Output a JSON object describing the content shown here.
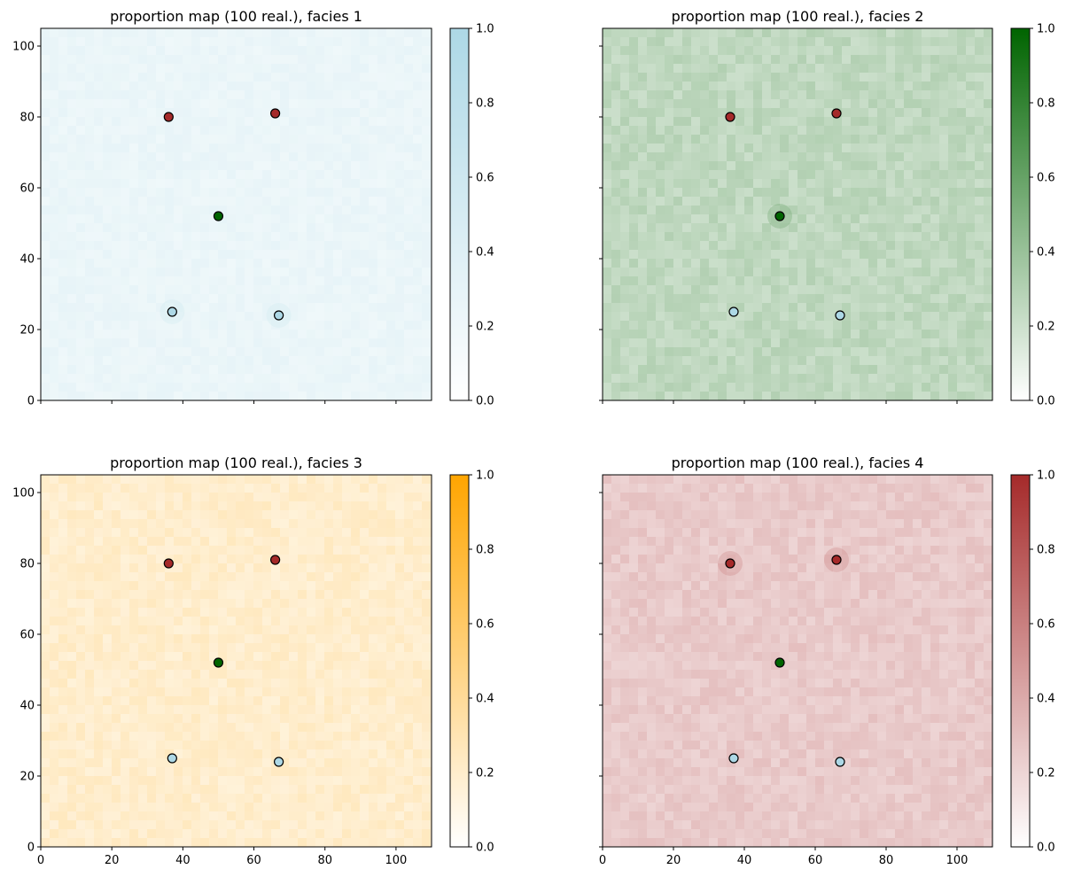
{
  "chart_data": [
    {
      "type": "heatmap",
      "title": "proportion map (100 real.), facies 1",
      "xlim": [
        0,
        110
      ],
      "ylim": [
        0,
        105
      ],
      "xticks": [
        0,
        20,
        40,
        60,
        80,
        100
      ],
      "yticks": [
        0,
        20,
        40,
        60,
        80,
        100
      ],
      "show_xticklabels": false,
      "show_yticklabels": true,
      "colorbar": {
        "ticks": [
          "0.0",
          "0.2",
          "0.4",
          "0.6",
          "0.8",
          "1.0"
        ],
        "range": [
          0,
          1
        ],
        "min_color": "#ffffff",
        "max_color": "#add8e6"
      },
      "mean_proportion": 0.25,
      "points": [
        {
          "x": 36,
          "y": 80,
          "color": "#a52a2a"
        },
        {
          "x": 66,
          "y": 81,
          "color": "#a52a2a"
        },
        {
          "x": 50,
          "y": 52,
          "color": "#006400"
        },
        {
          "x": 37,
          "y": 25,
          "color": "#add8e6"
        },
        {
          "x": 67,
          "y": 24,
          "color": "#add8e6"
        }
      ]
    },
    {
      "type": "heatmap",
      "title": "proportion map (100 real.), facies 2",
      "xlim": [
        0,
        110
      ],
      "ylim": [
        0,
        105
      ],
      "xticks": [
        0,
        20,
        40,
        60,
        80,
        100
      ],
      "yticks": [
        0,
        20,
        40,
        60,
        80,
        100
      ],
      "show_xticklabels": false,
      "show_yticklabels": false,
      "colorbar": {
        "ticks": [
          "0.0",
          "0.2",
          "0.4",
          "0.6",
          "0.8",
          "1.0"
        ],
        "range": [
          0,
          1
        ],
        "min_color": "#ffffff",
        "max_color": "#006400"
      },
      "mean_proportion": 0.25,
      "points": [
        {
          "x": 36,
          "y": 80,
          "color": "#a52a2a"
        },
        {
          "x": 66,
          "y": 81,
          "color": "#a52a2a"
        },
        {
          "x": 50,
          "y": 52,
          "color": "#006400"
        },
        {
          "x": 37,
          "y": 25,
          "color": "#add8e6"
        },
        {
          "x": 67,
          "y": 24,
          "color": "#add8e6"
        }
      ]
    },
    {
      "type": "heatmap",
      "title": "proportion map (100 real.), facies 3",
      "xlim": [
        0,
        110
      ],
      "ylim": [
        0,
        105
      ],
      "xticks": [
        0,
        20,
        40,
        60,
        80,
        100
      ],
      "yticks": [
        0,
        20,
        40,
        60,
        80,
        100
      ],
      "show_xticklabels": true,
      "show_yticklabels": true,
      "colorbar": {
        "ticks": [
          "0.0",
          "0.2",
          "0.4",
          "0.6",
          "0.8",
          "1.0"
        ],
        "range": [
          0,
          1
        ],
        "min_color": "#ffffff",
        "max_color": "#ffa500"
      },
      "mean_proportion": 0.2,
      "points": [
        {
          "x": 36,
          "y": 80,
          "color": "#a52a2a"
        },
        {
          "x": 66,
          "y": 81,
          "color": "#a52a2a"
        },
        {
          "x": 50,
          "y": 52,
          "color": "#006400"
        },
        {
          "x": 37,
          "y": 25,
          "color": "#add8e6"
        },
        {
          "x": 67,
          "y": 24,
          "color": "#add8e6"
        }
      ]
    },
    {
      "type": "heatmap",
      "title": "proportion map (100 real.), facies 4",
      "xlim": [
        0,
        110
      ],
      "ylim": [
        0,
        105
      ],
      "xticks": [
        0,
        20,
        40,
        60,
        80,
        100
      ],
      "yticks": [
        0,
        20,
        40,
        60,
        80,
        100
      ],
      "show_xticklabels": true,
      "show_yticklabels": false,
      "colorbar": {
        "ticks": [
          "0.0",
          "0.2",
          "0.4",
          "0.6",
          "0.8",
          "1.0"
        ],
        "range": [
          0,
          1
        ],
        "min_color": "#ffffff",
        "max_color": "#a52a2a"
      },
      "mean_proportion": 0.25,
      "points": [
        {
          "x": 36,
          "y": 80,
          "color": "#a52a2a"
        },
        {
          "x": 66,
          "y": 81,
          "color": "#a52a2a"
        },
        {
          "x": 50,
          "y": 52,
          "color": "#006400"
        },
        {
          "x": 37,
          "y": 25,
          "color": "#add8e6"
        },
        {
          "x": 67,
          "y": 24,
          "color": "#add8e6"
        }
      ]
    }
  ]
}
